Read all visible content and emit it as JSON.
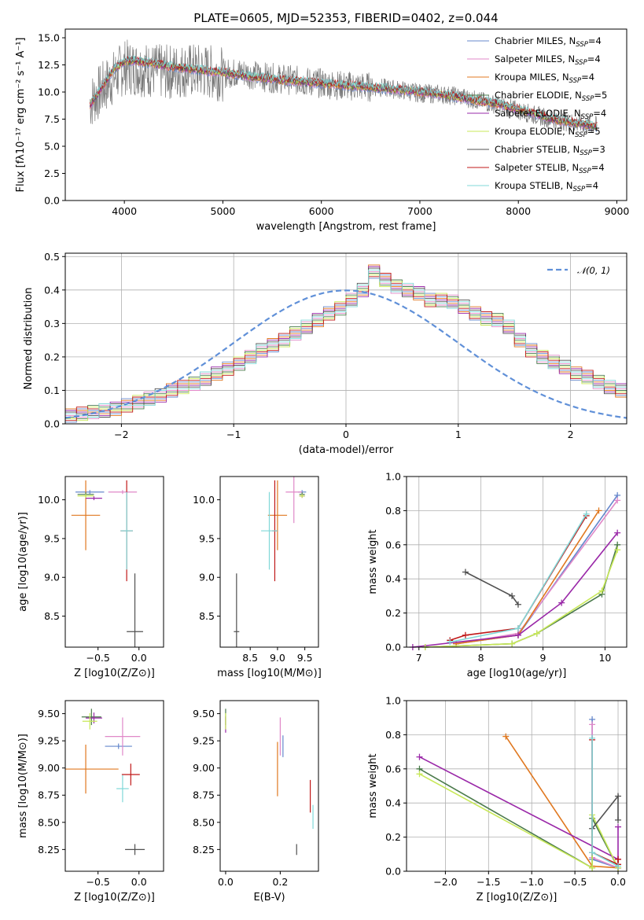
{
  "figure_title": "PLATE=0605, MJD=52353, FIBERID=0402, z=0.044",
  "colors": {
    "Chabrier MILES": "#6688cc",
    "Salpeter MILES": "#e088c8",
    "Kroupa MILES": "#e07820",
    "Chabrier ELODIE": "#4a7a4a",
    "Salpeter ELODIE": "#9a28a8",
    "Kroupa ELODIE": "#c8e858",
    "Chabrier STELIB": "#505050",
    "Salpeter STELIB": "#c01818",
    "Kroupa STELIB": "#80d8d8",
    "data": "#7a7a7a",
    "normal": "#6090d8"
  },
  "chart_data": [
    {
      "type": "line",
      "title": "PLATE=0605, MJD=52353, FIBERID=0402, z=0.044",
      "xlabel": "wavelength [Angstrom, rest frame]",
      "ylabel": "Flux [fλ10⁻¹⁷ erg cm⁻² s⁻¹ A⁻¹]",
      "xlim": [
        3400,
        9100
      ],
      "ylim": [
        0,
        15.8
      ],
      "xticks": [
        4000,
        5000,
        6000,
        7000,
        8000,
        9000
      ],
      "yticks": [
        0.0,
        2.5,
        5.0,
        7.5,
        10.0,
        12.5,
        15.0
      ],
      "legend_placement": "top-right",
      "legend": [
        {
          "label": "Chabrier MILES, N_SSP=4",
          "main": "Chabrier MILES, N",
          "sub": "SSP",
          "tail": "=4"
        },
        {
          "label": "Salpeter MILES, N_SSP=4",
          "main": "Salpeter MILES, N",
          "sub": "SSP",
          "tail": "=4"
        },
        {
          "label": "Kroupa MILES, N_SSP=4",
          "main": "Kroupa MILES, N",
          "sub": "SSP",
          "tail": "=4"
        },
        {
          "label": "Chabrier ELODIE, N_SSP=5",
          "main": "Chabrier ELODIE, N",
          "sub": "SSP",
          "tail": "=5"
        },
        {
          "label": "Salpeter ELODIE, N_SSP=4",
          "main": "Salpeter ELODIE, N",
          "sub": "SSP",
          "tail": "=4"
        },
        {
          "label": "Kroupa ELODIE, N_SSP=5",
          "main": "Kroupa ELODIE, N",
          "sub": "SSP",
          "tail": "=5"
        },
        {
          "label": "Chabrier STELIB, N_SSP=3",
          "main": "Chabrier STELIB, N",
          "sub": "SSP",
          "tail": "=3"
        },
        {
          "label": "Salpeter STELIB, N_SSP=4",
          "main": "Salpeter STELIB, N",
          "sub": "SSP",
          "tail": "=4"
        },
        {
          "label": "Kroupa STELIB, N_SSP=4",
          "main": "Kroupa STELIB, N",
          "sub": "SSP",
          "tail": "=4"
        }
      ],
      "data_spectrum": {
        "x": [
          3650,
          3800,
          4000,
          4200,
          4400,
          4600,
          4800,
          5000,
          5200,
          5400,
          5600,
          5800,
          6000,
          6200,
          6400,
          6600,
          6800,
          7000,
          7200,
          7400,
          7600,
          7800,
          8000,
          8200,
          8400,
          8600,
          8800
        ],
        "y": [
          9.0,
          10.5,
          12.3,
          12.1,
          11.8,
          12.0,
          11.9,
          11.7,
          11.8,
          11.4,
          11.2,
          11.0,
          10.8,
          10.6,
          10.5,
          10.4,
          10.2,
          9.9,
          9.8,
          9.6,
          9.2,
          8.8,
          8.3,
          7.8,
          7.4,
          7.1,
          6.9
        ]
      },
      "model_continuum": {
        "x": [
          3650,
          3800,
          3900,
          4000,
          4100,
          4300,
          4500,
          4700,
          5000,
          5300,
          5600,
          6000,
          6400,
          6800,
          7000,
          7200,
          7400,
          7600,
          7800,
          8000,
          8200,
          8400,
          8600,
          8800
        ],
        "y": [
          8.8,
          10.8,
          12.2,
          12.8,
          12.9,
          12.6,
          12.3,
          12.1,
          11.8,
          11.4,
          11.1,
          10.8,
          10.5,
          10.2,
          10.0,
          9.8,
          9.5,
          9.2,
          8.9,
          8.4,
          7.9,
          7.4,
          7.1,
          6.8
        ]
      }
    },
    {
      "type": "step",
      "xlabel": "(data-model)/error",
      "ylabel": "Normed distribution",
      "xlim": [
        -2.5,
        2.5
      ],
      "ylim": [
        0,
        0.51
      ],
      "xticks": [
        -2,
        -1,
        0,
        1,
        2
      ],
      "yticks": [
        0.0,
        0.1,
        0.2,
        0.3,
        0.4,
        0.5
      ],
      "grid": true,
      "legend_placement": "top-right",
      "legend": [
        {
          "label": "N(0,1)",
          "main": "𝒩(0, 1)"
        }
      ],
      "bin_width": 0.1,
      "bin_start": -2.5,
      "histogram": [
        0.025,
        0.03,
        0.035,
        0.04,
        0.045,
        0.055,
        0.065,
        0.075,
        0.085,
        0.1,
        0.11,
        0.12,
        0.135,
        0.15,
        0.165,
        0.18,
        0.2,
        0.22,
        0.235,
        0.25,
        0.27,
        0.29,
        0.31,
        0.33,
        0.345,
        0.37,
        0.4,
        0.455,
        0.43,
        0.41,
        0.4,
        0.39,
        0.37,
        0.37,
        0.365,
        0.35,
        0.33,
        0.315,
        0.31,
        0.29,
        0.25,
        0.22,
        0.2,
        0.185,
        0.17,
        0.15,
        0.14,
        0.125,
        0.11,
        0.1
      ]
    },
    {
      "type": "scatter",
      "name": "age vs Z",
      "xlabel": "Z [log10(Z/Z⊙)]",
      "ylabel": "age [log10(age/yr)]",
      "xlim": [
        -0.9,
        0.3
      ],
      "ylim": [
        8.1,
        10.3
      ],
      "xticks": [
        -0.5,
        0.0
      ],
      "yticks": [
        8.5,
        9.0,
        9.5,
        10.0
      ],
      "points": [
        {
          "model": "Chabrier MILES",
          "x": -0.6,
          "y": 10.1,
          "xerr": 0.35,
          "yerr": 0.05
        },
        {
          "model": "Salpeter MILES",
          "x": -0.2,
          "y": 10.1,
          "xerr": 0.35,
          "yerr": 0.05
        },
        {
          "model": "Kroupa MILES",
          "x": -0.65,
          "y": 9.8,
          "xerr": 0.35,
          "yerr": 0.9
        },
        {
          "model": "Chabrier ELODIE",
          "x": -0.65,
          "y": 10.07,
          "xerr": 0.2,
          "yerr": 0.05
        },
        {
          "model": "Salpeter ELODIE",
          "x": -0.55,
          "y": 10.02,
          "xerr": 0.2,
          "yerr": 0.05
        },
        {
          "model": "Kroupa ELODIE",
          "x": -0.65,
          "y": 10.05,
          "xerr": 0.2,
          "yerr": 0.05
        },
        {
          "model": "Chabrier STELIB",
          "x": -0.05,
          "y": 8.3,
          "xerr": 0.2,
          "yerr": 1.5
        },
        {
          "model": "Salpeter STELIB",
          "x": -0.15,
          "y": 9.6,
          "xerr": 0.15,
          "yerr": 1.3
        },
        {
          "model": "Kroupa STELIB",
          "x": -0.15,
          "y": 9.6,
          "xerr": 0.15,
          "yerr": 1.0
        }
      ]
    },
    {
      "type": "scatter",
      "name": "age vs mass",
      "xlabel": "mass [log10(M/M⊙)]",
      "ylabel": "",
      "xlim": [
        7.95,
        9.75
      ],
      "ylim": [
        8.1,
        10.3
      ],
      "xticks": [
        8.5,
        9.0,
        9.5
      ],
      "yticks": [
        8.5,
        9.0,
        9.5,
        10.0
      ],
      "points": [
        {
          "model": "Chabrier MILES",
          "x": 9.45,
          "y": 10.1,
          "xerr": 0.15,
          "yerr": 0.05
        },
        {
          "model": "Salpeter MILES",
          "x": 9.3,
          "y": 10.1,
          "xerr": 0.3,
          "yerr": 0.8
        },
        {
          "model": "Kroupa MILES",
          "x": 9.0,
          "y": 9.8,
          "xerr": 0.35,
          "yerr": 0.9
        },
        {
          "model": "Chabrier ELODIE",
          "x": 9.45,
          "y": 10.07,
          "xerr": 0.1,
          "yerr": 0.05
        },
        {
          "model": "Salpeter ELODIE",
          "x": 9.45,
          "y": 10.05,
          "xerr": 0.1,
          "yerr": 0.05
        },
        {
          "model": "Kroupa ELODIE",
          "x": 9.45,
          "y": 10.05,
          "xerr": 0.1,
          "yerr": 0.05
        },
        {
          "model": "Chabrier STELIB",
          "x": 8.25,
          "y": 8.3,
          "xerr": 0.1,
          "yerr": 1.5
        },
        {
          "model": "Salpeter STELIB",
          "x": 8.95,
          "y": 9.6,
          "xerr": 0.1,
          "yerr": 1.3
        },
        {
          "model": "Kroupa STELIB",
          "x": 8.85,
          "y": 9.6,
          "xerr": 0.3,
          "yerr": 1.0
        }
      ]
    },
    {
      "type": "line",
      "name": "mass weight vs age",
      "xlabel": "age  [log10(age/yr)]",
      "ylabel": "mass weight",
      "xlim": [
        6.8,
        10.35
      ],
      "ylim": [
        0,
        1.0
      ],
      "xticks": [
        7,
        8,
        9,
        10
      ],
      "yticks": [
        0.0,
        0.2,
        0.4,
        0.6,
        0.8,
        1.0
      ],
      "grid": true,
      "series": [
        {
          "model": "Chabrier MILES",
          "x": [
            7.6,
            8.6,
            10.2
          ],
          "y": [
            0.02,
            0.07,
            0.89
          ]
        },
        {
          "model": "Salpeter MILES",
          "x": [
            7.6,
            8.6,
            10.2
          ],
          "y": [
            0.02,
            0.08,
            0.86
          ]
        },
        {
          "model": "Kroupa MILES",
          "x": [
            7.6,
            8.6,
            9.9
          ],
          "y": [
            0.02,
            0.07,
            0.8
          ]
        },
        {
          "model": "Chabrier ELODIE",
          "x": [
            7.1,
            8.5,
            8.9,
            9.95,
            10.2
          ],
          "y": [
            0.0,
            0.02,
            0.08,
            0.31,
            0.6
          ]
        },
        {
          "model": "Salpeter ELODIE",
          "x": [
            6.9,
            8.6,
            9.3,
            10.2
          ],
          "y": [
            0.0,
            0.07,
            0.26,
            0.67
          ]
        },
        {
          "model": "Kroupa ELODIE",
          "x": [
            7.1,
            8.5,
            8.9,
            9.95,
            10.2
          ],
          "y": [
            0.0,
            0.02,
            0.08,
            0.33,
            0.57
          ]
        },
        {
          "model": "Chabrier STELIB",
          "x": [
            7.75,
            8.5,
            8.6
          ],
          "y": [
            0.44,
            0.3,
            0.25
          ]
        },
        {
          "model": "Salpeter STELIB",
          "x": [
            7.5,
            7.75,
            8.6,
            9.7
          ],
          "y": [
            0.04,
            0.07,
            0.11,
            0.77
          ]
        },
        {
          "model": "Kroupa STELIB",
          "x": [
            7.5,
            8.6,
            9.7
          ],
          "y": [
            0.03,
            0.11,
            0.78
          ]
        }
      ]
    },
    {
      "type": "scatter",
      "name": "mass vs Z",
      "xlabel": "Z [log10(Z/Z⊙)]",
      "ylabel": "mass [log10(M/M⊙)]",
      "xlim": [
        -0.9,
        0.3
      ],
      "ylim": [
        8.05,
        9.62
      ],
      "xticks": [
        -0.5,
        0.0
      ],
      "yticks": [
        8.25,
        8.5,
        8.75,
        9.0,
        9.25,
        9.5
      ],
      "points": [
        {
          "model": "Chabrier MILES",
          "x": -0.25,
          "y": 9.2,
          "xerr": 0.33,
          "yerr": 0.05
        },
        {
          "model": "Salpeter MILES",
          "x": -0.2,
          "y": 9.29,
          "xerr": 0.43,
          "yerr": 0.35
        },
        {
          "model": "Kroupa MILES",
          "x": -0.65,
          "y": 8.99,
          "xerr": 0.8,
          "yerr": 0.45
        },
        {
          "model": "Chabrier ELODIE",
          "x": -0.58,
          "y": 9.47,
          "xerr": 0.24,
          "yerr": 0.15
        },
        {
          "model": "Salpeter ELODIE",
          "x": -0.55,
          "y": 9.46,
          "xerr": 0.2,
          "yerr": 0.1
        },
        {
          "model": "Kroupa ELODIE",
          "x": -0.6,
          "y": 9.43,
          "xerr": 0.18,
          "yerr": 0.15
        },
        {
          "model": "Chabrier STELIB",
          "x": -0.05,
          "y": 8.25,
          "xerr": 0.24,
          "yerr": 0.1
        },
        {
          "model": "Salpeter STELIB",
          "x": -0.1,
          "y": 8.94,
          "xerr": 0.22,
          "yerr": 0.2
        },
        {
          "model": "Kroupa STELIB",
          "x": -0.2,
          "y": 8.81,
          "xerr": 0.15,
          "yerr": 0.25
        }
      ]
    },
    {
      "type": "scatter",
      "name": "mass vs E(B-V)",
      "xlabel": "E(B-V)",
      "ylabel": "",
      "xlim": [
        -0.02,
        0.34
      ],
      "ylim": [
        8.05,
        9.62
      ],
      "xticks": [
        0.0,
        0.2
      ],
      "yticks": [
        8.25,
        8.5,
        8.75,
        9.0,
        9.25,
        9.5
      ],
      "points": [
        {
          "model": "Chabrier MILES",
          "x": 0.21,
          "y": 9.2,
          "xerr": 0.0,
          "yerr": 0.2
        },
        {
          "model": "Salpeter MILES",
          "x": 0.2,
          "y": 9.29,
          "xerr": 0.0,
          "yerr": 0.35
        },
        {
          "model": "Kroupa MILES",
          "x": 0.19,
          "y": 8.99,
          "xerr": 0.0,
          "yerr": 0.5
        },
        {
          "model": "Chabrier ELODIE",
          "x": 0.0,
          "y": 9.47,
          "xerr": 0.0,
          "yerr": 0.15
        },
        {
          "model": "Salpeter ELODIE",
          "x": 0.0,
          "y": 9.4,
          "xerr": 0.0,
          "yerr": 0.15
        },
        {
          "model": "Kroupa ELODIE",
          "x": 0.0,
          "y": 9.43,
          "xerr": 0.0,
          "yerr": 0.15
        },
        {
          "model": "Chabrier STELIB",
          "x": 0.26,
          "y": 8.25,
          "xerr": 0.0,
          "yerr": 0.1
        },
        {
          "model": "Salpeter STELIB",
          "x": 0.31,
          "y": 8.74,
          "xerr": 0.0,
          "yerr": 0.3
        },
        {
          "model": "Kroupa STELIB",
          "x": 0.32,
          "y": 8.55,
          "xerr": 0.0,
          "yerr": 0.22
        }
      ]
    },
    {
      "type": "line",
      "name": "mass weight vs Z",
      "xlabel": "Z [log10(Z/Z⊙)]",
      "ylabel": "mass weight",
      "xlim": [
        -2.45,
        0.1
      ],
      "ylim": [
        0,
        1.0
      ],
      "xticks": [
        -2.0,
        -1.5,
        -1.0,
        -0.5,
        0.0
      ],
      "yticks": [
        0.0,
        0.2,
        0.4,
        0.6,
        0.8,
        1.0
      ],
      "grid": true,
      "series": [
        {
          "model": "Chabrier MILES",
          "x": [
            -0.3,
            -0.3,
            0.0,
            0.0
          ],
          "y": [
            0.89,
            0.07,
            0.02,
            0.02
          ]
        },
        {
          "model": "Salpeter MILES",
          "x": [
            -0.3,
            -0.3,
            0.0,
            0.0
          ],
          "y": [
            0.86,
            0.08,
            0.02,
            0.02
          ]
        },
        {
          "model": "Kroupa MILES",
          "x": [
            -1.3,
            -0.3,
            0.0
          ],
          "y": [
            0.79,
            0.03,
            0.02
          ]
        },
        {
          "model": "Chabrier ELODIE",
          "x": [
            -2.3,
            -0.3,
            -0.3,
            0.0
          ],
          "y": [
            0.6,
            0.02,
            0.31,
            0.02
          ]
        },
        {
          "model": "Salpeter ELODIE",
          "x": [
            -2.3,
            0.0,
            0.0,
            0.0
          ],
          "y": [
            0.67,
            0.07,
            0.26,
            0.02
          ]
        },
        {
          "model": "Kroupa ELODIE",
          "x": [
            -2.3,
            -0.3,
            -0.3,
            0.0
          ],
          "y": [
            0.57,
            0.02,
            0.33,
            0.02
          ]
        },
        {
          "model": "Chabrier STELIB",
          "x": [
            -0.3,
            0.0,
            0.0
          ],
          "y": [
            0.25,
            0.44,
            0.3
          ]
        },
        {
          "model": "Salpeter STELIB",
          "x": [
            -0.3,
            -0.3,
            0.0,
            0.0
          ],
          "y": [
            0.77,
            0.11,
            0.04,
            0.07
          ]
        },
        {
          "model": "Kroupa STELIB",
          "x": [
            -0.3,
            -0.3,
            0.0
          ],
          "y": [
            0.78,
            0.11,
            0.03
          ]
        }
      ]
    }
  ]
}
